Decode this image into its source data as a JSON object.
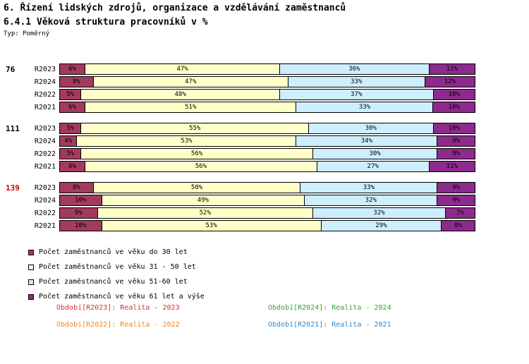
{
  "header": {
    "title": "6. Řízení lidských zdrojů, organizace a vzdělávání zaměstnanců",
    "subtitle": "6.4.1 Věková struktura pracovníků v %",
    "type_label": "Typ: Poměrný"
  },
  "chart_data": {
    "type": "bar",
    "orientation": "horizontal-stacked",
    "value_suffix": "%",
    "xlim": [
      0,
      100
    ],
    "series_names": [
      "Počet zaměstnanců ve věku do 30 let",
      "Počet zaměstnanců ve věku 31 - 50 let",
      "Počet zaměstnanců ve věku 51-60 let",
      "Počet zaměstnanců ve věku 61 let a výše"
    ],
    "series_colors": [
      "#A23B5C",
      "#FFFFC8",
      "#CDEEFF",
      "#8D2A8D"
    ],
    "groups": [
      {
        "label": "76",
        "label_color": "#000000",
        "rows": [
          {
            "period": "R2023",
            "values": [
              6,
              47,
              36,
              11
            ]
          },
          {
            "period": "R2024",
            "values": [
              8,
              47,
              33,
              12
            ]
          },
          {
            "period": "R2022",
            "values": [
              5,
              48,
              37,
              10
            ]
          },
          {
            "period": "R2021",
            "values": [
              6,
              51,
              33,
              10
            ]
          }
        ]
      },
      {
        "label": "111",
        "label_color": "#000000",
        "rows": [
          {
            "period": "R2023",
            "values": [
              5,
              55,
              30,
              10
            ]
          },
          {
            "period": "R2024",
            "values": [
              4,
              53,
              34,
              9
            ]
          },
          {
            "period": "R2022",
            "values": [
              5,
              56,
              30,
              9
            ]
          },
          {
            "period": "R2021",
            "values": [
              6,
              56,
              27,
              11
            ]
          }
        ]
      },
      {
        "label": "139",
        "label_color": "#CC0000",
        "rows": [
          {
            "period": "R2023",
            "values": [
              8,
              50,
              33,
              9
            ]
          },
          {
            "period": "R2024",
            "values": [
              10,
              49,
              32,
              9
            ]
          },
          {
            "period": "R2022",
            "values": [
              9,
              52,
              32,
              7
            ]
          },
          {
            "period": "R2021",
            "values": [
              10,
              53,
              29,
              8
            ]
          }
        ]
      }
    ]
  },
  "legend": {
    "items": [
      {
        "label": "Počet zaměstnanců ve věku do 30 let",
        "color": "#A23B5C"
      },
      {
        "label": "Počet zaměstnanců ve věku 31 - 50 let",
        "color": "#FFFFC8"
      },
      {
        "label": "Počet zaměstnanců ve věku 51-60 let",
        "color": "#CDEEFF"
      },
      {
        "label": "Počet zaměstnanců ve věku 61 let a výše",
        "color": "#8D2A8D"
      }
    ]
  },
  "footer": {
    "items": [
      {
        "label": "Období[R2023]: Realita - 2023",
        "color": "#CC3333"
      },
      {
        "label": "Období[R2024]: Realita - 2024",
        "color": "#33A333"
      },
      {
        "label": "Období[R2022]: Realita - 2022",
        "color": "#EE8822"
      },
      {
        "label": "Období[R2021]: Realita - 2021",
        "color": "#3388CC"
      }
    ]
  }
}
